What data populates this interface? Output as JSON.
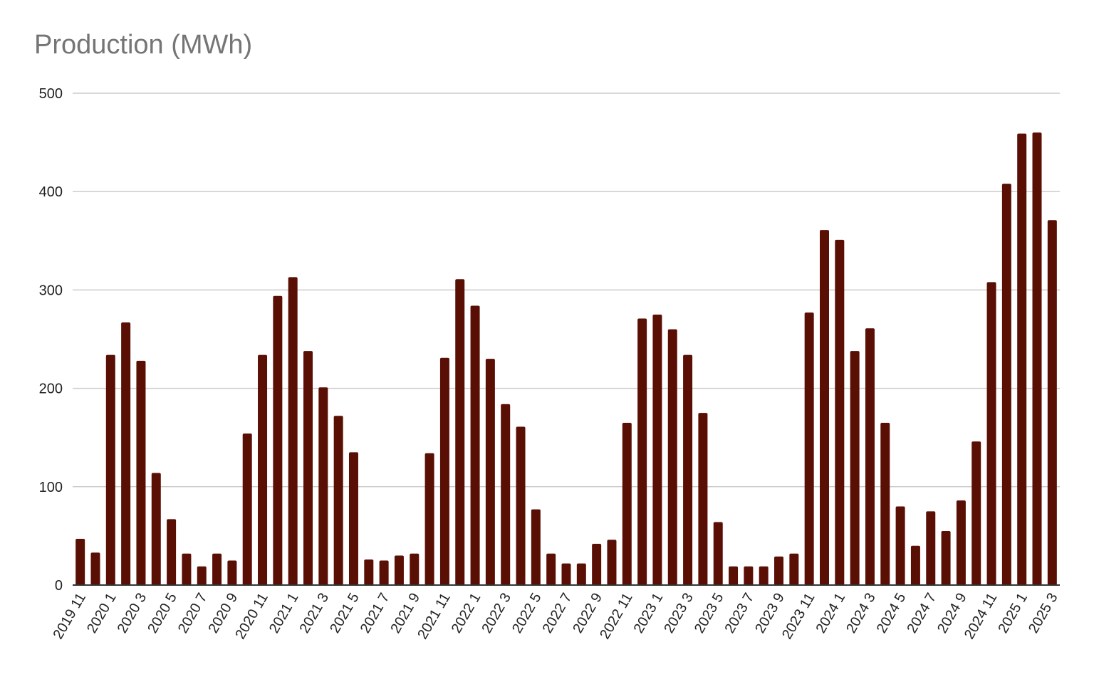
{
  "chart_data": {
    "type": "bar",
    "title": "Production (MWh)",
    "xlabel": "",
    "ylabel": "",
    "ylim": [
      0,
      500
    ],
    "yticks": [
      0,
      100,
      200,
      300,
      400,
      500
    ],
    "grid": true,
    "bar_color": "#5a0f05",
    "categories": [
      "2019 11",
      "2019 12",
      "2020 1",
      "2020 2",
      "2020 3",
      "2020 4",
      "2020 5",
      "2020 6",
      "2020 7",
      "2020 8",
      "2020 9",
      "2020 10",
      "2020 11",
      "2020 12",
      "2021 1",
      "2021 2",
      "2021 3",
      "2021 4",
      "2021 5",
      "2021 6",
      "2021 7",
      "2021 8",
      "2021 9",
      "2021 10",
      "2021 11",
      "2021 12",
      "2022 1",
      "2022 2",
      "2022 3",
      "2022 4",
      "2022 5",
      "2022 6",
      "2022 7",
      "2022 8",
      "2022 9",
      "2022 10",
      "2022 11",
      "2022 12",
      "2023 1",
      "2023 2",
      "2023 3",
      "2023 4",
      "2023 5",
      "2023 6",
      "2023 7",
      "2023 8",
      "2023 9",
      "2023 10",
      "2023 11",
      "2023 12",
      "2024 1",
      "2024 2",
      "2024 3",
      "2024 4",
      "2024 5",
      "2024 6",
      "2024 7",
      "2024 8",
      "2024 9",
      "2024 10",
      "2024 11",
      "2024 12",
      "2025 1",
      "2025 2",
      "2025 3"
    ],
    "visible_tick_labels": [
      "2019 11",
      "2020 1",
      "2020 3",
      "2020 5",
      "2020 7",
      "2020 9",
      "2020 11",
      "2021 1",
      "2021 3",
      "2021 5",
      "2021 7",
      "2021 9",
      "2021 11",
      "2022 1",
      "2022 3",
      "2022 5",
      "2022 7",
      "2022 9",
      "2022 11",
      "2023 1",
      "2023 3",
      "2023 5",
      "2023 7",
      "2023 9",
      "2023 11",
      "2024 1",
      "2024 3",
      "2024 5",
      "2024 7",
      "2024 9",
      "2024 11",
      "2025 1",
      "2025 3"
    ],
    "values": [
      47,
      33,
      234,
      267,
      228,
      114,
      67,
      32,
      19,
      32,
      25,
      154,
      234,
      294,
      313,
      238,
      201,
      172,
      135,
      26,
      25,
      30,
      32,
      134,
      231,
      311,
      284,
      230,
      184,
      161,
      77,
      32,
      22,
      22,
      42,
      46,
      165,
      271,
      275,
      260,
      234,
      175,
      64,
      19,
      19,
      19,
      29,
      32,
      277,
      361,
      351,
      238,
      261,
      165,
      80,
      40,
      75,
      55,
      86,
      146,
      308,
      408,
      459,
      460,
      371
    ]
  }
}
